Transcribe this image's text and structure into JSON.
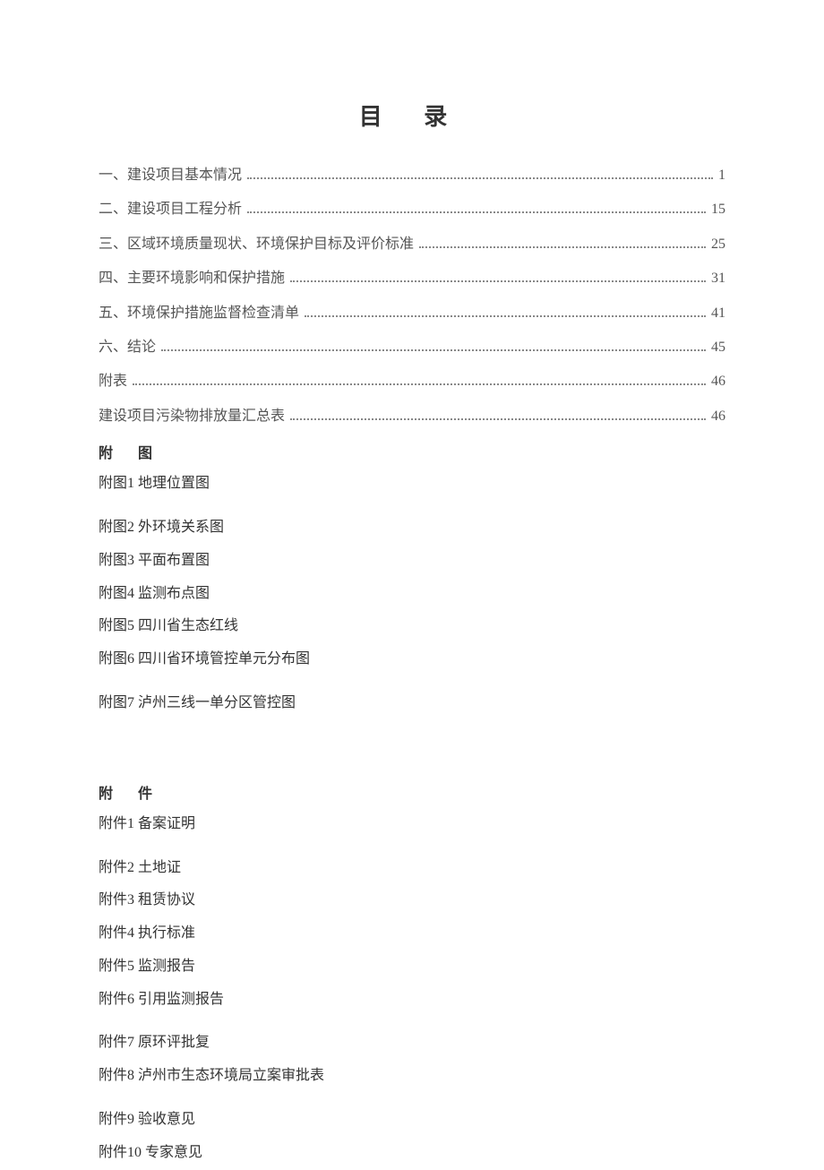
{
  "title": "目 录",
  "toc": [
    {
      "label": "一、建设项目基本情况",
      "page": "1"
    },
    {
      "label": "二、建设项目工程分析",
      "page": "15"
    },
    {
      "label": "三、区域环境质量现状、环境保护目标及评价标准",
      "page": "25"
    },
    {
      "label": "四、主要环境影响和保护措施",
      "page": "31"
    },
    {
      "label": "五、环境保护措施监督检查清单",
      "page": "41"
    },
    {
      "label": "六、结论",
      "page": "45"
    },
    {
      "label": "附表",
      "page": "46"
    },
    {
      "label": "建设项目污染物排放量汇总表",
      "page": "46"
    }
  ],
  "figures_heading": "附 图",
  "figures": [
    "附图1  地理位置图",
    "附图2  外环境关系图",
    "附图3  平面布置图",
    "附图4  监测布点图",
    "附图5  四川省生态红线",
    "附图6  四川省环境管控单元分布图",
    "附图7  泸州三线一单分区管控图"
  ],
  "attachments_heading": "附  件",
  "attachments": [
    "附件1  备案证明",
    "附件2  土地证",
    "附件3  租赁协议",
    "附件4  执行标准",
    "附件5  监测报告",
    "附件6  引用监测报告",
    "附件7  原环评批复",
    "附件8  泸州市生态环境局立案审批表",
    "附件9  验收意见",
    "附件10  专家意见"
  ],
  "colors": {
    "background": "#ffffff",
    "text_primary": "#333333",
    "text_secondary": "#555555",
    "dots": "#888888"
  },
  "typography": {
    "title_fontsize": 26,
    "body_fontsize": 16,
    "line_height": 2.4
  }
}
